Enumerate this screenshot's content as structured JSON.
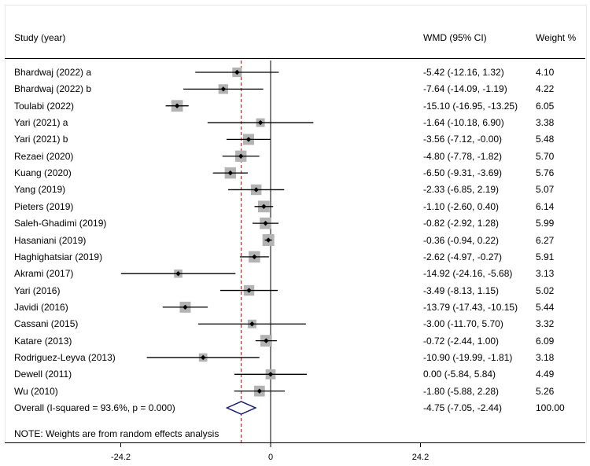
{
  "header": {
    "study_label": "Study (year)",
    "wmd_label": "WMD (95% CI)",
    "weight_label": "Weight %"
  },
  "note": "NOTE: Weights are from random effects analysis",
  "colors": {
    "ci_line": "#000000",
    "weight_box": "#b3b3b3",
    "point": "#000000",
    "overall_diamond": "#1a1a6e",
    "overall_line": "#c00000",
    "panel_bg": "#ffffff"
  },
  "chart_data": {
    "type": "forest",
    "x_ticks": [
      -24.2,
      0,
      24.2
    ],
    "x_tick_labels": [
      "-24.2",
      "0",
      "24.2"
    ],
    "xlim": [
      -24.2,
      24.2
    ],
    "null_line": 0,
    "studies": [
      {
        "label": "Bhardwaj (2022) a",
        "wmd": -5.42,
        "lo": -12.16,
        "hi": 1.32,
        "weight": 4.1,
        "ci_text": "-5.42 (-12.16, 1.32)",
        "weight_text": "4.10"
      },
      {
        "label": "Bhardwaj (2022) b",
        "wmd": -7.64,
        "lo": -14.09,
        "hi": -1.19,
        "weight": 4.22,
        "ci_text": "-7.64 (-14.09, -1.19)",
        "weight_text": "4.22"
      },
      {
        "label": "Toulabi (2022)",
        "wmd": -15.1,
        "lo": -16.95,
        "hi": -13.25,
        "weight": 6.05,
        "ci_text": "-15.10 (-16.95, -13.25)",
        "weight_text": "6.05"
      },
      {
        "label": "Yari (2021) a",
        "wmd": -1.64,
        "lo": -10.18,
        "hi": 6.9,
        "weight": 3.38,
        "ci_text": "-1.64 (-10.18, 6.90)",
        "weight_text": "3.38"
      },
      {
        "label": "Yari (2021) b",
        "wmd": -3.56,
        "lo": -7.12,
        "hi": -0.0,
        "weight": 5.48,
        "ci_text": "-3.56 (-7.12, -0.00)",
        "weight_text": "5.48"
      },
      {
        "label": "Rezaei (2020)",
        "wmd": -4.8,
        "lo": -7.78,
        "hi": -1.82,
        "weight": 5.7,
        "ci_text": "-4.80 (-7.78, -1.82)",
        "weight_text": "5.70"
      },
      {
        "label": "Kuang (2020)",
        "wmd": -6.5,
        "lo": -9.31,
        "hi": -3.69,
        "weight": 5.76,
        "ci_text": "-6.50 (-9.31, -3.69)",
        "weight_text": "5.76"
      },
      {
        "label": "Yang (2019)",
        "wmd": -2.33,
        "lo": -6.85,
        "hi": 2.19,
        "weight": 5.07,
        "ci_text": "-2.33 (-6.85, 2.19)",
        "weight_text": "5.07"
      },
      {
        "label": "Pieters (2019)",
        "wmd": -1.1,
        "lo": -2.6,
        "hi": 0.4,
        "weight": 6.14,
        "ci_text": "-1.10 (-2.60, 0.40)",
        "weight_text": "6.14"
      },
      {
        "label": "Saleh-Ghadimi (2019)",
        "wmd": -0.82,
        "lo": -2.92,
        "hi": 1.28,
        "weight": 5.99,
        "ci_text": "-0.82 (-2.92, 1.28)",
        "weight_text": "5.99"
      },
      {
        "label": "Hasaniani (2019)",
        "wmd": -0.36,
        "lo": -0.94,
        "hi": 0.22,
        "weight": 6.27,
        "ci_text": "-0.36 (-0.94, 0.22)",
        "weight_text": "6.27"
      },
      {
        "label": "Haghighatsiar (2019)",
        "wmd": -2.62,
        "lo": -4.97,
        "hi": -0.27,
        "weight": 5.91,
        "ci_text": "-2.62 (-4.97, -0.27)",
        "weight_text": "5.91"
      },
      {
        "label": "Akrami (2017)",
        "wmd": -14.92,
        "lo": -24.16,
        "hi": -5.68,
        "weight": 3.13,
        "ci_text": "-14.92 (-24.16, -5.68)",
        "weight_text": "3.13"
      },
      {
        "label": "Yari (2016)",
        "wmd": -3.49,
        "lo": -8.13,
        "hi": 1.15,
        "weight": 5.02,
        "ci_text": "-3.49 (-8.13, 1.15)",
        "weight_text": "5.02"
      },
      {
        "label": "Javidi (2016)",
        "wmd": -13.79,
        "lo": -17.43,
        "hi": -10.15,
        "weight": 5.44,
        "ci_text": "-13.79 (-17.43, -10.15)",
        "weight_text": "5.44"
      },
      {
        "label": "Cassani (2015)",
        "wmd": -3.0,
        "lo": -11.7,
        "hi": 5.7,
        "weight": 3.32,
        "ci_text": "-3.00 (-11.70, 5.70)",
        "weight_text": "3.32"
      },
      {
        "label": "Katare (2013)",
        "wmd": -0.72,
        "lo": -2.44,
        "hi": 1.0,
        "weight": 6.09,
        "ci_text": "-0.72 (-2.44, 1.00)",
        "weight_text": "6.09"
      },
      {
        "label": "Rodriguez-Leyva (2013)",
        "wmd": -10.9,
        "lo": -19.99,
        "hi": -1.81,
        "weight": 3.18,
        "ci_text": "-10.90 (-19.99, -1.81)",
        "weight_text": "3.18"
      },
      {
        "label": "Dewell (2011)",
        "wmd": 0.0,
        "lo": -5.84,
        "hi": 5.84,
        "weight": 4.49,
        "ci_text": "0.00 (-5.84, 5.84)",
        "weight_text": "4.49"
      },
      {
        "label": "Wu (2010)",
        "wmd": -1.8,
        "lo": -5.88,
        "hi": 2.28,
        "weight": 5.26,
        "ci_text": "-1.80 (-5.88, 2.28)",
        "weight_text": "5.26"
      }
    ],
    "overall": {
      "label": "Overall  (I-squared = 93.6%, p = 0.000)",
      "wmd": -4.75,
      "lo": -7.05,
      "hi": -2.44,
      "weight": 100.0,
      "ci_text": "-4.75 (-7.05, -2.44)",
      "weight_text": "100.00"
    }
  }
}
